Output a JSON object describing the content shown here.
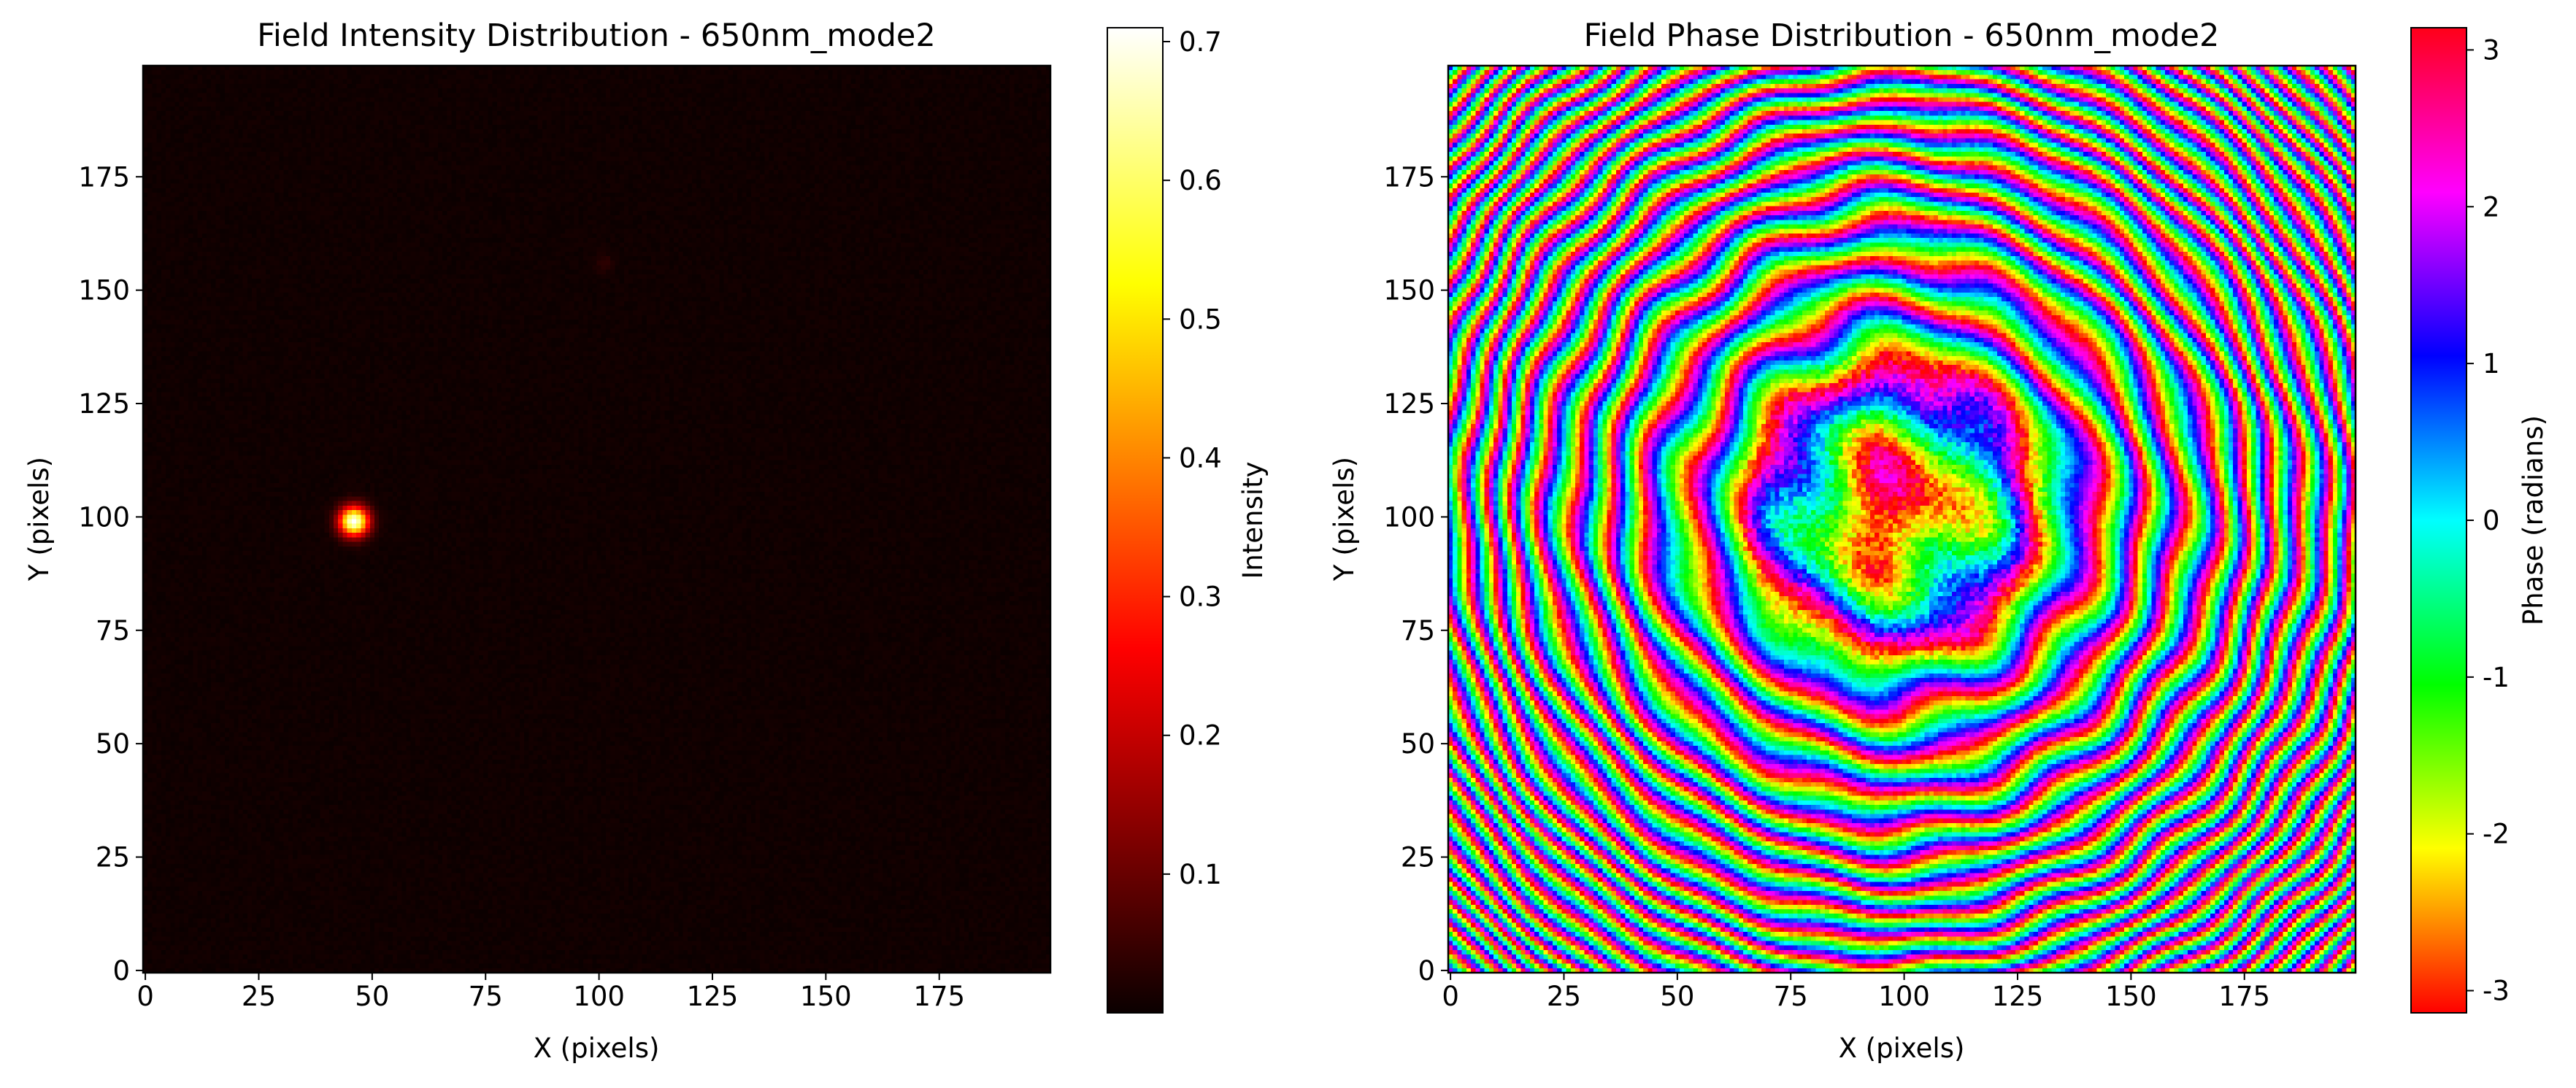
{
  "chart_data": [
    {
      "type": "heatmap",
      "title": "Field Intensity Distribution - 650nm_mode2",
      "xlabel": "X (pixels)",
      "ylabel": "Y (pixels)",
      "xlim": [
        0,
        199
      ],
      "ylim": [
        0,
        199
      ],
      "grid_size": [
        200,
        200
      ],
      "xticks": [
        0,
        25,
        50,
        75,
        100,
        125,
        150,
        175
      ],
      "yticks": [
        0,
        25,
        50,
        75,
        100,
        125,
        150,
        175
      ],
      "colormap": "hot",
      "colormap_stops": [
        "#000000",
        "#ff0000",
        "#ffff00",
        "#ffffff"
      ],
      "colorbar": {
        "label": "Intensity",
        "range": [
          0,
          0.71
        ],
        "ticks": [
          0.1,
          0.2,
          0.3,
          0.4,
          0.5,
          0.6,
          0.7
        ],
        "tick_labels": [
          "0.1",
          "0.2",
          "0.3",
          "0.4",
          "0.5",
          "0.6",
          "0.7"
        ]
      },
      "features": {
        "peak": {
          "x": 46,
          "y": 99,
          "value": 0.71,
          "sigma_pixels": 2.2
        },
        "background_level": 0.012,
        "faint_spot": {
          "x": 101,
          "y": 156,
          "value": 0.03
        }
      }
    },
    {
      "type": "heatmap",
      "title": "Field Phase Distribution - 650nm_mode2",
      "xlabel": "X (pixels)",
      "ylabel": "Y (pixels)",
      "xlim": [
        0,
        199
      ],
      "ylim": [
        0,
        199
      ],
      "grid_size": [
        200,
        200
      ],
      "xticks": [
        0,
        25,
        50,
        75,
        100,
        125,
        150,
        175
      ],
      "yticks": [
        0,
        25,
        50,
        75,
        100,
        125,
        150,
        175
      ],
      "colormap": "hsv",
      "colorbar": {
        "label": "Phase (radians)",
        "range": [
          -3.1416,
          3.1416
        ],
        "ticks": [
          -3,
          -2,
          -1,
          0,
          1,
          2,
          3
        ],
        "tick_labels": [
          "-3",
          "-2",
          "-1",
          "0",
          "1",
          "2",
          "3"
        ]
      },
      "features": {
        "pattern": "concentric rings",
        "center": {
          "x": 98,
          "y": 102
        }
      }
    }
  ]
}
